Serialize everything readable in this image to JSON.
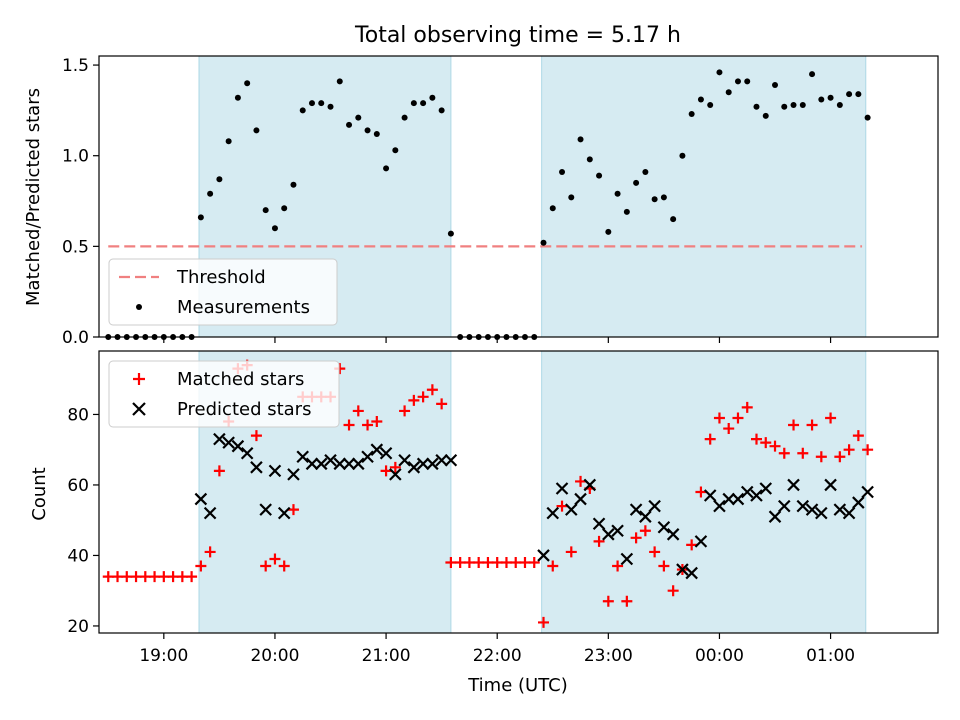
{
  "figure": {
    "title": "Total observing time = 5.17 h",
    "xlabel": "Time (UTC)"
  },
  "chart_data": [
    {
      "type": "scatter",
      "name": "ratio-panel",
      "ylabel": "Matched/Predicted stars",
      "xlim": [
        "18:25",
        "01:58"
      ],
      "ylim": [
        0,
        1.55
      ],
      "yticks": [
        "0.0",
        "0.5",
        "1.0",
        "1.5"
      ],
      "shaded_intervals": [
        [
          "19:19",
          "21:35"
        ],
        [
          "22:24",
          "01:19"
        ]
      ],
      "grid": false,
      "legend": "lower-left",
      "threshold": {
        "name": "Threshold",
        "value": 0.5,
        "x_range": [
          "18:30",
          "01:17"
        ],
        "color": "#f08080"
      },
      "series": [
        {
          "name": "Measurements",
          "color": "#000000",
          "marker": "dot",
          "points": [
            [
              "18:30",
              0
            ],
            [
              "18:35",
              0
            ],
            [
              "18:40",
              0
            ],
            [
              "18:45",
              0
            ],
            [
              "18:50",
              0
            ],
            [
              "18:55",
              0
            ],
            [
              "19:00",
              0
            ],
            [
              "19:05",
              0
            ],
            [
              "19:10",
              0
            ],
            [
              "19:15",
              0
            ],
            [
              "19:20",
              0.66
            ],
            [
              "19:25",
              0.79
            ],
            [
              "19:30",
              0.87
            ],
            [
              "19:35",
              1.08
            ],
            [
              "19:40",
              1.32
            ],
            [
              "19:45",
              1.4
            ],
            [
              "19:50",
              1.14
            ],
            [
              "19:55",
              0.7
            ],
            [
              "20:00",
              0.6
            ],
            [
              "20:05",
              0.71
            ],
            [
              "20:10",
              0.84
            ],
            [
              "20:15",
              1.25
            ],
            [
              "20:20",
              1.29
            ],
            [
              "20:25",
              1.29
            ],
            [
              "20:30",
              1.27
            ],
            [
              "20:35",
              1.41
            ],
            [
              "20:40",
              1.17
            ],
            [
              "20:45",
              1.21
            ],
            [
              "20:50",
              1.14
            ],
            [
              "20:55",
              1.12
            ],
            [
              "21:00",
              0.93
            ],
            [
              "21:05",
              1.03
            ],
            [
              "21:10",
              1.21
            ],
            [
              "21:15",
              1.29
            ],
            [
              "21:20",
              1.29
            ],
            [
              "21:25",
              1.32
            ],
            [
              "21:30",
              1.25
            ],
            [
              "21:35",
              0.57
            ],
            [
              "21:40",
              0
            ],
            [
              "21:45",
              0
            ],
            [
              "21:50",
              0
            ],
            [
              "21:55",
              0
            ],
            [
              "22:00",
              0
            ],
            [
              "22:05",
              0
            ],
            [
              "22:10",
              0
            ],
            [
              "22:15",
              0
            ],
            [
              "22:20",
              0
            ],
            [
              "22:25",
              0.52
            ],
            [
              "22:30",
              0.71
            ],
            [
              "22:35",
              0.91
            ],
            [
              "22:40",
              0.77
            ],
            [
              "22:45",
              1.09
            ],
            [
              "22:50",
              0.98
            ],
            [
              "22:55",
              0.89
            ],
            [
              "23:00",
              0.58
            ],
            [
              "23:05",
              0.79
            ],
            [
              "23:10",
              0.69
            ],
            [
              "23:15",
              0.85
            ],
            [
              "23:20",
              0.91
            ],
            [
              "23:25",
              0.76
            ],
            [
              "23:30",
              0.77
            ],
            [
              "23:35",
              0.65
            ],
            [
              "23:40",
              1.0
            ],
            [
              "23:45",
              1.23
            ],
            [
              "23:50",
              1.31
            ],
            [
              "23:55",
              1.28
            ],
            [
              "00:00",
              1.46
            ],
            [
              "00:05",
              1.35
            ],
            [
              "00:10",
              1.41
            ],
            [
              "00:15",
              1.41
            ],
            [
              "00:20",
              1.27
            ],
            [
              "00:25",
              1.22
            ],
            [
              "00:30",
              1.39
            ],
            [
              "00:35",
              1.27
            ],
            [
              "00:40",
              1.28
            ],
            [
              "00:45",
              1.28
            ],
            [
              "00:50",
              1.45
            ],
            [
              "00:55",
              1.31
            ],
            [
              "01:00",
              1.32
            ],
            [
              "01:05",
              1.28
            ],
            [
              "01:10",
              1.34
            ],
            [
              "01:15",
              1.34
            ],
            [
              "01:20",
              1.21
            ]
          ]
        }
      ]
    },
    {
      "type": "scatter",
      "name": "count-panel",
      "ylabel": "Count",
      "xlim": [
        "18:25",
        "01:58"
      ],
      "ylim": [
        18,
        98
      ],
      "yticks": [
        "20",
        "40",
        "60",
        "80"
      ],
      "xticks": [
        "19:00",
        "20:00",
        "21:00",
        "22:00",
        "23:00",
        "00:00",
        "01:00"
      ],
      "shaded_intervals": [
        [
          "19:19",
          "21:35"
        ],
        [
          "22:24",
          "01:19"
        ]
      ],
      "grid": false,
      "legend": "upper-left",
      "series": [
        {
          "name": "Matched stars",
          "color": "#ff0000",
          "marker": "plus",
          "points": [
            [
              "18:30",
              34
            ],
            [
              "18:35",
              34
            ],
            [
              "18:40",
              34
            ],
            [
              "18:45",
              34
            ],
            [
              "18:50",
              34
            ],
            [
              "18:55",
              34
            ],
            [
              "19:00",
              34
            ],
            [
              "19:05",
              34
            ],
            [
              "19:10",
              34
            ],
            [
              "19:15",
              34
            ],
            [
              "19:20",
              37
            ],
            [
              "19:25",
              41
            ],
            [
              "19:30",
              64
            ],
            [
              "19:35",
              78
            ],
            [
              "19:40",
              93
            ],
            [
              "19:45",
              94
            ],
            [
              "19:50",
              74
            ],
            [
              "19:55",
              37
            ],
            [
              "20:00",
              39
            ],
            [
              "20:05",
              37
            ],
            [
              "20:10",
              53
            ],
            [
              "20:15",
              85
            ],
            [
              "20:20",
              85
            ],
            [
              "20:25",
              85
            ],
            [
              "20:30",
              85
            ],
            [
              "20:35",
              93
            ],
            [
              "20:40",
              77
            ],
            [
              "20:45",
              81
            ],
            [
              "20:50",
              77
            ],
            [
              "20:55",
              78
            ],
            [
              "21:00",
              64
            ],
            [
              "21:05",
              65
            ],
            [
              "21:10",
              81
            ],
            [
              "21:15",
              84
            ],
            [
              "21:20",
              85
            ],
            [
              "21:25",
              87
            ],
            [
              "21:30",
              83
            ],
            [
              "21:35",
              38
            ],
            [
              "21:40",
              38
            ],
            [
              "21:45",
              38
            ],
            [
              "21:50",
              38
            ],
            [
              "21:55",
              38
            ],
            [
              "22:00",
              38
            ],
            [
              "22:05",
              38
            ],
            [
              "22:10",
              38
            ],
            [
              "22:15",
              38
            ],
            [
              "22:20",
              38
            ],
            [
              "22:25",
              21
            ],
            [
              "22:30",
              37
            ],
            [
              "22:35",
              54
            ],
            [
              "22:40",
              41
            ],
            [
              "22:45",
              61
            ],
            [
              "22:50",
              59
            ],
            [
              "22:55",
              44
            ],
            [
              "23:00",
              27
            ],
            [
              "23:05",
              37
            ],
            [
              "23:10",
              27
            ],
            [
              "23:15",
              45
            ],
            [
              "23:20",
              47
            ],
            [
              "23:25",
              41
            ],
            [
              "23:30",
              37
            ],
            [
              "23:35",
              30
            ],
            [
              "23:40",
              36
            ],
            [
              "23:45",
              43
            ],
            [
              "23:50",
              58
            ],
            [
              "23:55",
              73
            ],
            [
              "00:00",
              79
            ],
            [
              "00:05",
              76
            ],
            [
              "00:10",
              79
            ],
            [
              "00:15",
              82
            ],
            [
              "00:20",
              73
            ],
            [
              "00:25",
              72
            ],
            [
              "00:30",
              71
            ],
            [
              "00:35",
              69
            ],
            [
              "00:40",
              77
            ],
            [
              "00:45",
              69
            ],
            [
              "00:50",
              77
            ],
            [
              "00:55",
              68
            ],
            [
              "01:00",
              79
            ],
            [
              "01:05",
              68
            ],
            [
              "01:10",
              70
            ],
            [
              "01:15",
              74
            ],
            [
              "01:20",
              70
            ]
          ]
        },
        {
          "name": "Predicted stars",
          "color": "#000000",
          "marker": "cross",
          "points": [
            [
              "19:20",
              56
            ],
            [
              "19:25",
              52
            ],
            [
              "19:30",
              73
            ],
            [
              "19:35",
              72
            ],
            [
              "19:40",
              71
            ],
            [
              "19:45",
              69
            ],
            [
              "19:50",
              65
            ],
            [
              "19:55",
              53
            ],
            [
              "20:00",
              64
            ],
            [
              "20:05",
              52
            ],
            [
              "20:10",
              63
            ],
            [
              "20:15",
              68
            ],
            [
              "20:20",
              66
            ],
            [
              "20:25",
              66
            ],
            [
              "20:30",
              67
            ],
            [
              "20:35",
              66
            ],
            [
              "20:40",
              66
            ],
            [
              "20:45",
              66
            ],
            [
              "20:50",
              68
            ],
            [
              "20:55",
              70
            ],
            [
              "21:00",
              69
            ],
            [
              "21:05",
              63
            ],
            [
              "21:10",
              67
            ],
            [
              "21:15",
              65
            ],
            [
              "21:20",
              66
            ],
            [
              "21:25",
              66
            ],
            [
              "21:30",
              67
            ],
            [
              "21:35",
              67
            ],
            [
              "22:25",
              40
            ],
            [
              "22:30",
              52
            ],
            [
              "22:35",
              59
            ],
            [
              "22:40",
              53
            ],
            [
              "22:45",
              56
            ],
            [
              "22:50",
              60
            ],
            [
              "22:55",
              49
            ],
            [
              "23:00",
              46
            ],
            [
              "23:05",
              47
            ],
            [
              "23:10",
              39
            ],
            [
              "23:15",
              53
            ],
            [
              "23:20",
              51
            ],
            [
              "23:25",
              54
            ],
            [
              "23:30",
              48
            ],
            [
              "23:35",
              46
            ],
            [
              "23:40",
              36
            ],
            [
              "23:45",
              35
            ],
            [
              "23:50",
              44
            ],
            [
              "23:55",
              57
            ],
            [
              "00:00",
              54
            ],
            [
              "00:05",
              56
            ],
            [
              "00:10",
              56
            ],
            [
              "00:15",
              58
            ],
            [
              "00:20",
              57
            ],
            [
              "00:25",
              59
            ],
            [
              "00:30",
              51
            ],
            [
              "00:35",
              54
            ],
            [
              "00:40",
              60
            ],
            [
              "00:45",
              54
            ],
            [
              "00:50",
              53
            ],
            [
              "00:55",
              52
            ],
            [
              "01:00",
              60
            ],
            [
              "01:05",
              53
            ],
            [
              "01:10",
              52
            ],
            [
              "01:15",
              55
            ],
            [
              "01:20",
              58
            ]
          ]
        }
      ]
    }
  ]
}
